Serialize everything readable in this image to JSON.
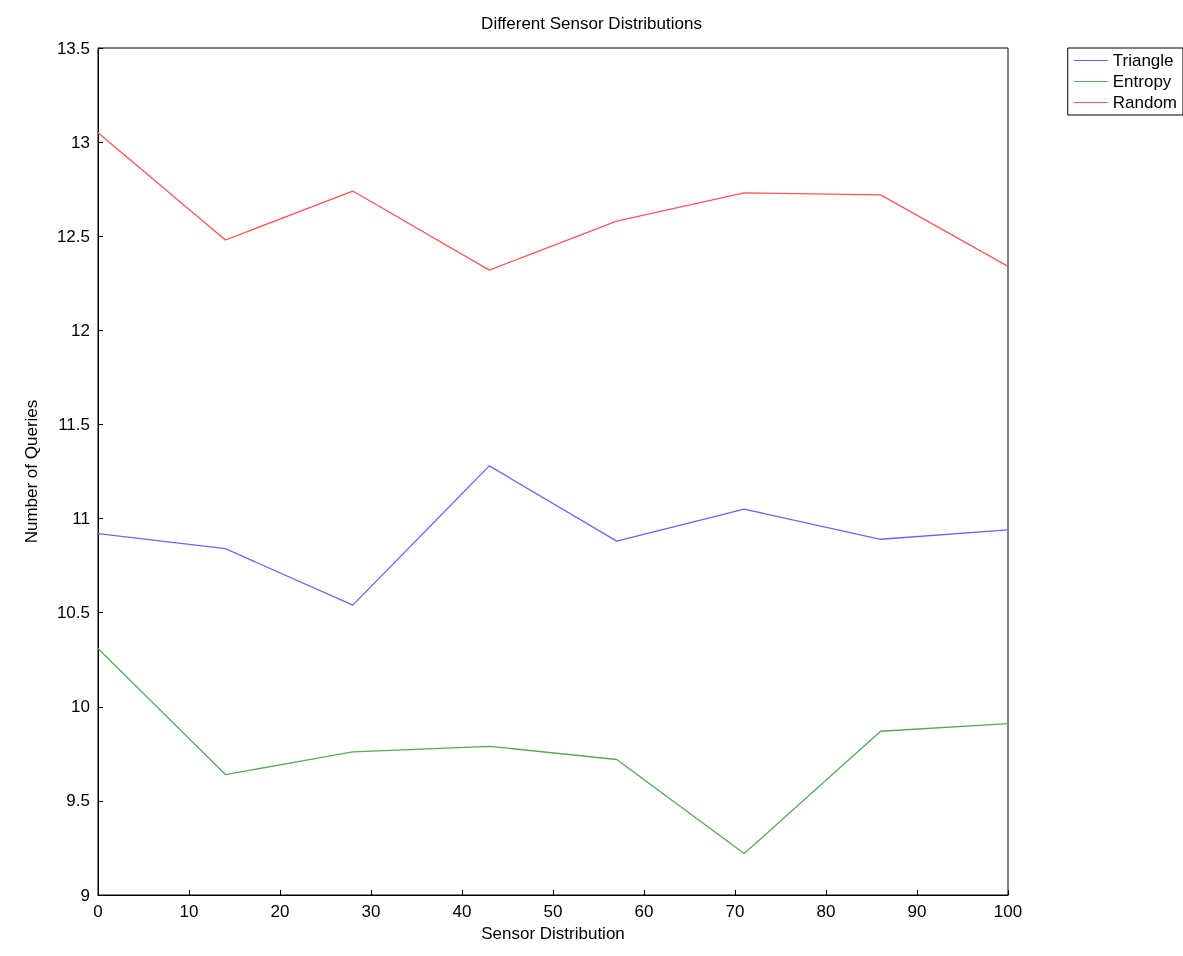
{
  "chart_data": {
    "type": "line",
    "title": "Different Sensor Distributions",
    "xlabel": "Sensor Distribution",
    "ylabel": "Number of Queries",
    "x": [
      0,
      14,
      28,
      43,
      57,
      71,
      86,
      100
    ],
    "series": [
      {
        "name": "Triangle",
        "color": "#6666ff",
        "values": [
          10.92,
          10.84,
          10.54,
          11.28,
          10.88,
          11.05,
          10.89,
          10.94
        ]
      },
      {
        "name": "Entropy",
        "color": "#55aa55",
        "values": [
          10.31,
          9.64,
          9.76,
          9.79,
          9.72,
          9.22,
          9.87,
          9.91
        ]
      },
      {
        "name": "Random",
        "color": "#ff5555",
        "values": [
          13.05,
          12.48,
          12.74,
          12.32,
          12.58,
          12.73,
          12.72,
          12.34
        ]
      }
    ],
    "xlim": [
      0,
      100
    ],
    "xticks": [
      0,
      10,
      20,
      30,
      40,
      50,
      60,
      70,
      80,
      90,
      100
    ],
    "ylim": [
      9,
      13.5
    ],
    "yticks": [
      9,
      9.5,
      10,
      10.5,
      11,
      11.5,
      12,
      12.5,
      13,
      13.5
    ],
    "grid": false,
    "legend": "top right",
    "marker": "none",
    "line_style": "solid"
  }
}
